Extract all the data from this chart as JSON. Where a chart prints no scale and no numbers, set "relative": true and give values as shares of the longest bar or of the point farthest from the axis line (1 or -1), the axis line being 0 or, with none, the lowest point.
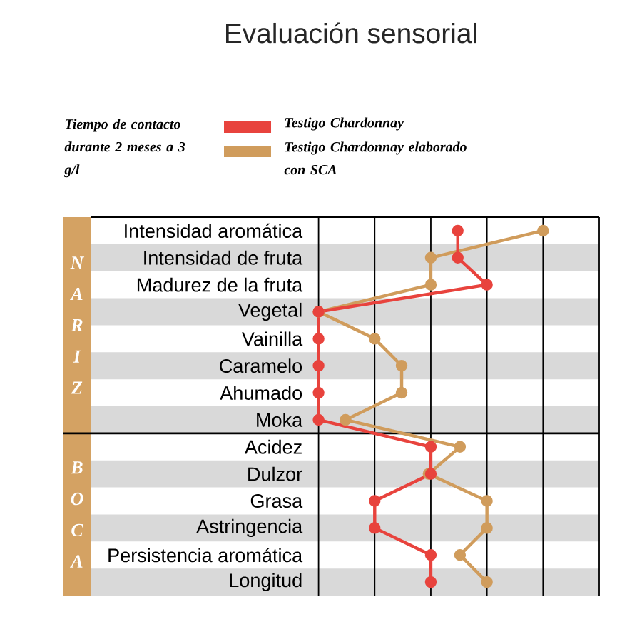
{
  "chart_data": {
    "type": "line",
    "title": "Evaluación sensorial",
    "orientation": "horizontal",
    "relative": true,
    "categories": [
      "Intensidad aromática",
      "Intensidad de fruta",
      "Madurez de la fruta",
      "Vegetal",
      "Vainilla",
      "Caramelo",
      "Ahumado",
      "Moka",
      "Acidez",
      "Dulzor",
      "Grasa",
      "Astringencia",
      "Persistencia aromática",
      "Longitud"
    ],
    "series": [
      {
        "name": "Testigo Chardonnay",
        "color": "#e8433d",
        "values": [
          0.62,
          0.62,
          0.75,
          0,
          0,
          0,
          0,
          0,
          0.5,
          0.5,
          0.25,
          0.25,
          0.5,
          0.5
        ]
      },
      {
        "name": "Testigo Chardonnay elaborado con SCA",
        "color": "#d09c5c",
        "values": [
          1,
          0.5,
          0.5,
          0,
          0.25,
          0.37,
          0.37,
          0.12,
          0.63,
          0.49,
          0.75,
          0.75,
          0.63,
          0.75
        ]
      }
    ],
    "legend_title": "Tiempo de contacto durante 2 meses a 3 g/l",
    "legend": "top",
    "marker": "circle",
    "grid": "x",
    "tick_labels": "y",
    "annotations": [
      "NARIZ",
      "BOCA"
    ]
  }
}
